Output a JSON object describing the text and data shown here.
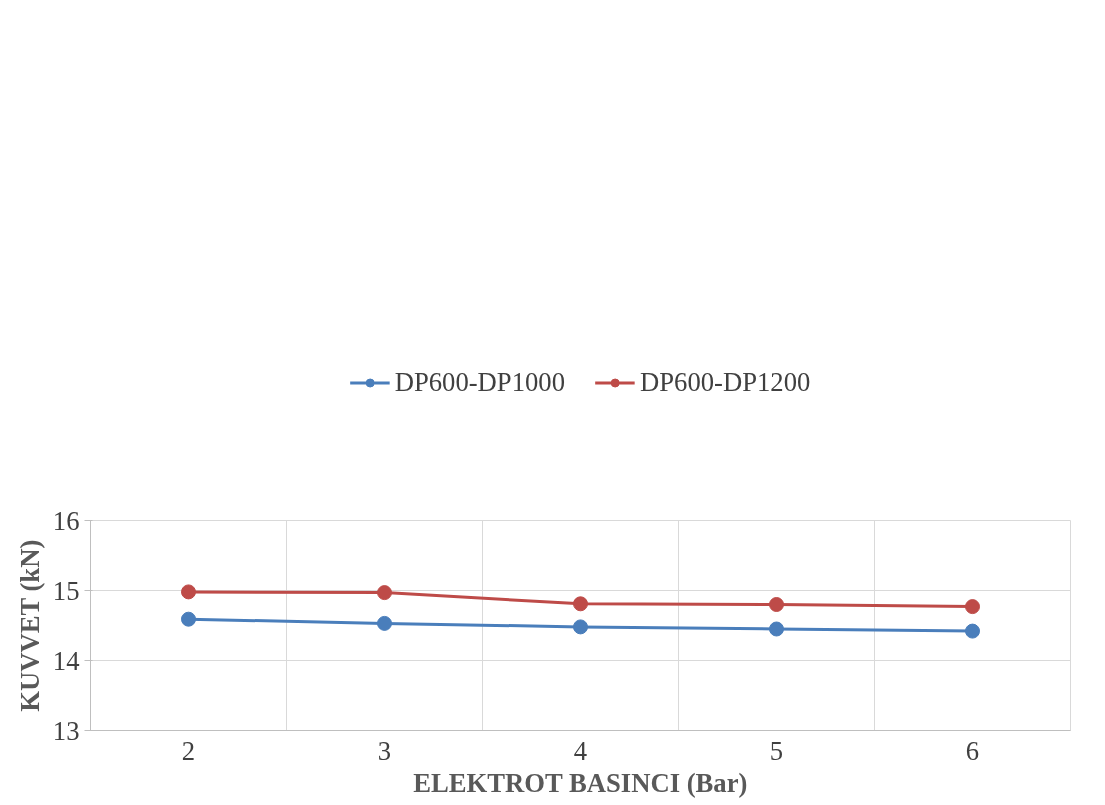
{
  "chart_data": {
    "type": "line",
    "xlabel": "ELEKTROT BASINCI (Bar)",
    "ylabel": "KUVVET (kN)",
    "categories": [
      "2",
      "3",
      "4",
      "5",
      "6"
    ],
    "series": [
      {
        "name": "DP600-DP1000",
        "color": "#4a7ebb",
        "values": [
          14.59,
          14.53,
          14.48,
          14.45,
          14.42
        ]
      },
      {
        "name": "DP600-DP1200",
        "color": "#be4b48",
        "values": [
          14.98,
          14.97,
          14.81,
          14.8,
          14.77
        ]
      }
    ],
    "ylim": [
      13,
      16
    ],
    "yticks": [
      13,
      14,
      15,
      16
    ],
    "grid": true,
    "legend": "top",
    "marker": "circle",
    "line_style": "solid"
  }
}
